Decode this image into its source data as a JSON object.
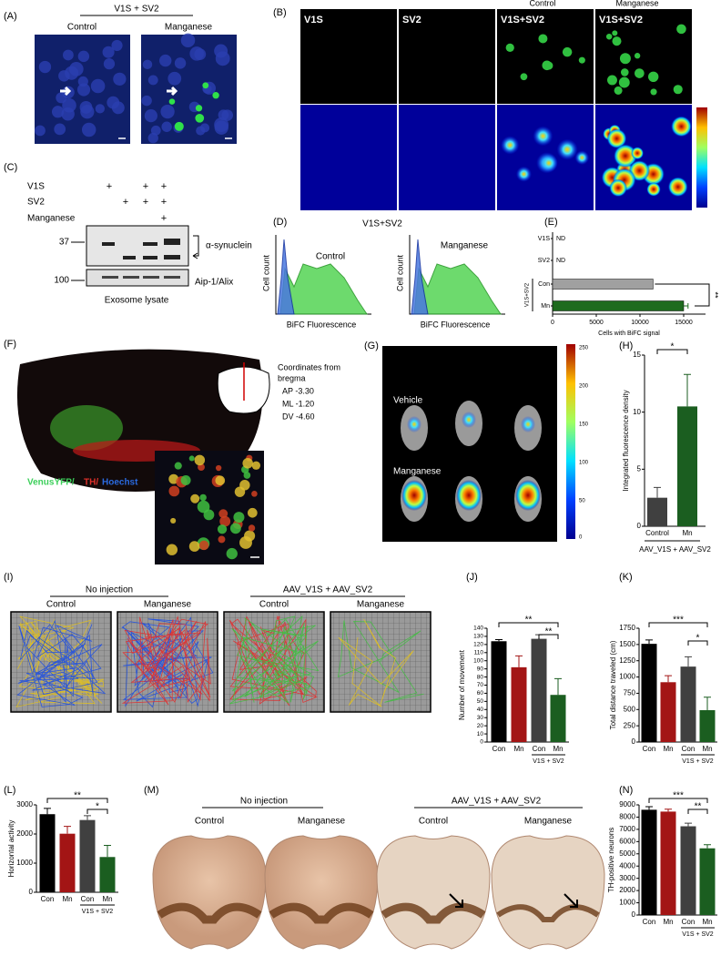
{
  "panel_a": {
    "label": "(A)",
    "title": "V1S + SV2",
    "columns": [
      "Control",
      "Manganese"
    ]
  },
  "panel_b": {
    "label": "(B)",
    "columns": [
      "V1S",
      "SV2",
      "V1S+SV2",
      "V1S+SV2"
    ],
    "conditions": [
      "Control",
      "Manganese"
    ]
  },
  "panel_c": {
    "label": "(C)",
    "rows": [
      {
        "name": "V1S",
        "marks": [
          "+",
          null,
          "+",
          "+"
        ]
      },
      {
        "name": "SV2",
        "marks": [
          null,
          "+",
          "+",
          "+"
        ]
      },
      {
        "name": "Manganese",
        "marks": [
          null,
          null,
          null,
          "+"
        ]
      }
    ],
    "markers": [
      "37",
      "100"
    ],
    "bands": [
      "α-synuclein",
      "Aip-1/Alix"
    ],
    "caption": "Exosome lysate"
  },
  "panel_d": {
    "label": "(D)",
    "title": "V1S+SV2",
    "plots": [
      {
        "name": "Control",
        "y_label": "Cell count",
        "x_label": "BiFC Fluorescence"
      },
      {
        "name": "Manganese",
        "y_label": "Cell count",
        "x_label": "BiFC Fluorescence"
      }
    ]
  },
  "panel_f": {
    "label": "(F)",
    "stain": [
      "VenusYFP/",
      "TH/",
      "Hoechst"
    ],
    "coordinates": [
      "Coordinates from",
      "bregma",
      "AP -3.30",
      "ML -1.20",
      "DV -4.60"
    ]
  },
  "panel_g": {
    "label": "(G)",
    "groups": [
      "Vehicle",
      "Manganese"
    ],
    "scale": [
      "250",
      "200",
      "150",
      "100",
      "50",
      "0"
    ]
  },
  "panel_i": {
    "label": "(I)",
    "groups": [
      "No injection",
      "AAV_V1S + AAV_SV2"
    ],
    "conditions": [
      "Control",
      "Manganese",
      "Control",
      "Manganese"
    ]
  },
  "panel_m": {
    "label": "(M)",
    "groups": [
      "No injection",
      "AAV_V1S + AAV_SV2"
    ],
    "conditions": [
      "Control",
      "Manganese",
      "Control",
      "Manganese"
    ]
  },
  "chart_data": [
    {
      "type": "barh",
      "label": "(E)",
      "categories": [
        "V1S",
        "SV2",
        "Con",
        "Mn"
      ],
      "values": [
        null,
        null,
        11500,
        15000
      ],
      "value_labels": [
        "ND",
        "ND",
        null,
        null
      ],
      "errors": [
        null,
        null,
        null,
        500
      ],
      "colors": [
        null,
        null,
        "#a0a0a0",
        "#1e6b1e"
      ],
      "group_label": "V1S+SV2",
      "xlabel": "Cells with BiFC signal",
      "xlim": [
        0,
        17500
      ],
      "xticks": [
        0,
        5000,
        10000,
        15000
      ],
      "annotations": [
        "**"
      ]
    },
    {
      "type": "bar",
      "label": "(H)",
      "categories": [
        "Control",
        "Mn"
      ],
      "values": [
        2.5,
        10.5
      ],
      "errors": [
        0.9,
        2.8
      ],
      "colors": [
        "#404040",
        "#1b5e20"
      ],
      "ylabel": "Integrated fluorescence density",
      "xlabel": "AAV_V1S + AAV_SV2",
      "ylim": [
        0,
        15
      ],
      "yticks": [
        0,
        5,
        10,
        15
      ],
      "annotations": [
        "*"
      ]
    },
    {
      "type": "bar",
      "label": "(J)",
      "categories": [
        "Con",
        "Mn",
        "Con",
        "Mn"
      ],
      "values": [
        124,
        92,
        127,
        58
      ],
      "errors": [
        2,
        14,
        5,
        20
      ],
      "colors": [
        "#000000",
        "#a31515",
        "#404040",
        "#1b5e20"
      ],
      "ylabel": "Number of movement",
      "group_label": "V1S + SV2",
      "ylim": [
        0,
        140
      ],
      "yticks": [
        0,
        10,
        20,
        30,
        40,
        50,
        60,
        70,
        80,
        90,
        100,
        110,
        120,
        130,
        140
      ],
      "annotations": [
        "**",
        "**"
      ]
    },
    {
      "type": "bar",
      "label": "(K)",
      "categories": [
        "Con",
        "Mn",
        "Con",
        "Mn"
      ],
      "values": [
        1510,
        920,
        1160,
        490
      ],
      "errors": [
        60,
        100,
        150,
        200
      ],
      "colors": [
        "#000000",
        "#a31515",
        "#404040",
        "#1b5e20"
      ],
      "ylabel": "Total distance traveled (cm)",
      "group_label": "V1S + SV2",
      "ylim": [
        0,
        1750
      ],
      "yticks": [
        0,
        250,
        500,
        750,
        1000,
        1250,
        1500,
        1750
      ],
      "annotations": [
        "***",
        "*"
      ]
    },
    {
      "type": "bar",
      "label": "(L)",
      "categories": [
        "Con",
        "Mn",
        "Con",
        "Mn"
      ],
      "values": [
        2680,
        2010,
        2480,
        1210
      ],
      "errors": [
        200,
        250,
        150,
        400
      ],
      "colors": [
        "#000000",
        "#a31515",
        "#404040",
        "#1b5e20"
      ],
      "ylabel": "Horizontal activity",
      "group_label": "V1S + SV2",
      "ylim": [
        0,
        3000
      ],
      "yticks": [
        0,
        1000,
        2000,
        3000
      ],
      "annotations": [
        "**",
        "*"
      ]
    },
    {
      "type": "bar",
      "label": "(N)",
      "categories": [
        "Con",
        "Mn",
        "Con",
        "Mn"
      ],
      "values": [
        8600,
        8450,
        7250,
        5450
      ],
      "errors": [
        250,
        200,
        250,
        300
      ],
      "colors": [
        "#000000",
        "#a31515",
        "#404040",
        "#1b5e20"
      ],
      "ylabel": "TH-positive neurons",
      "group_label": "V1S + SV2",
      "ylim": [
        0,
        9000
      ],
      "yticks": [
        0,
        1000,
        2000,
        3000,
        4000,
        5000,
        6000,
        7000,
        8000,
        9000
      ],
      "annotations": [
        "***",
        "**"
      ]
    }
  ]
}
